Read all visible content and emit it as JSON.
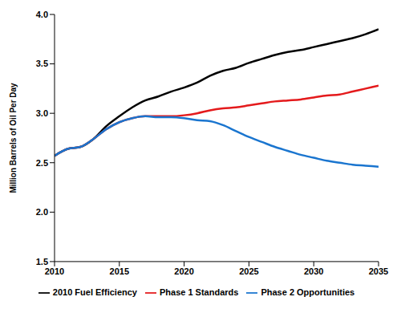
{
  "chart_data": {
    "type": "line",
    "y_label": "Million Barrels of Oil Per Day",
    "x": [
      2010,
      2011,
      2012,
      2013,
      2014,
      2015,
      2016,
      2017,
      2018,
      2019,
      2020,
      2021,
      2022,
      2023,
      2024,
      2025,
      2026,
      2027,
      2028,
      2029,
      2030,
      2031,
      2032,
      2033,
      2034,
      2035
    ],
    "series": [
      {
        "name": "2010 Fuel Efficiency",
        "color": "#000000",
        "values": [
          2.57,
          2.64,
          2.66,
          2.74,
          2.87,
          2.97,
          3.06,
          3.13,
          3.17,
          3.22,
          3.26,
          3.31,
          3.38,
          3.43,
          3.46,
          3.51,
          3.55,
          3.59,
          3.62,
          3.64,
          3.67,
          3.7,
          3.73,
          3.76,
          3.8,
          3.85
        ]
      },
      {
        "name": "Phase 1 Standards",
        "color": "#e41a1c",
        "values": [
          2.57,
          2.64,
          2.66,
          2.74,
          2.84,
          2.91,
          2.95,
          2.97,
          2.97,
          2.97,
          2.98,
          3.0,
          3.03,
          3.05,
          3.06,
          3.08,
          3.1,
          3.12,
          3.13,
          3.14,
          3.16,
          3.18,
          3.19,
          3.22,
          3.25,
          3.28
        ]
      },
      {
        "name": "Phase 2 Opportunities",
        "color": "#1a75cf",
        "values": [
          2.57,
          2.64,
          2.66,
          2.74,
          2.84,
          2.91,
          2.95,
          2.97,
          2.96,
          2.96,
          2.95,
          2.93,
          2.92,
          2.88,
          2.82,
          2.76,
          2.71,
          2.66,
          2.62,
          2.58,
          2.55,
          2.52,
          2.5,
          2.48,
          2.47,
          2.46
        ]
      }
    ],
    "xlim": [
      2010,
      2035
    ],
    "xticks": [
      2010,
      2015,
      2020,
      2025,
      2030,
      2035
    ],
    "ylim": [
      1.5,
      4.0
    ],
    "yticks": [
      1.5,
      {
        "value": 2,
        "label": "2.0"
      },
      2.5,
      {
        "value": 3,
        "label": "3.0"
      },
      3.5,
      {
        "value": 4,
        "label": "4.0"
      }
    ],
    "grid": false,
    "legend": "bottom"
  }
}
